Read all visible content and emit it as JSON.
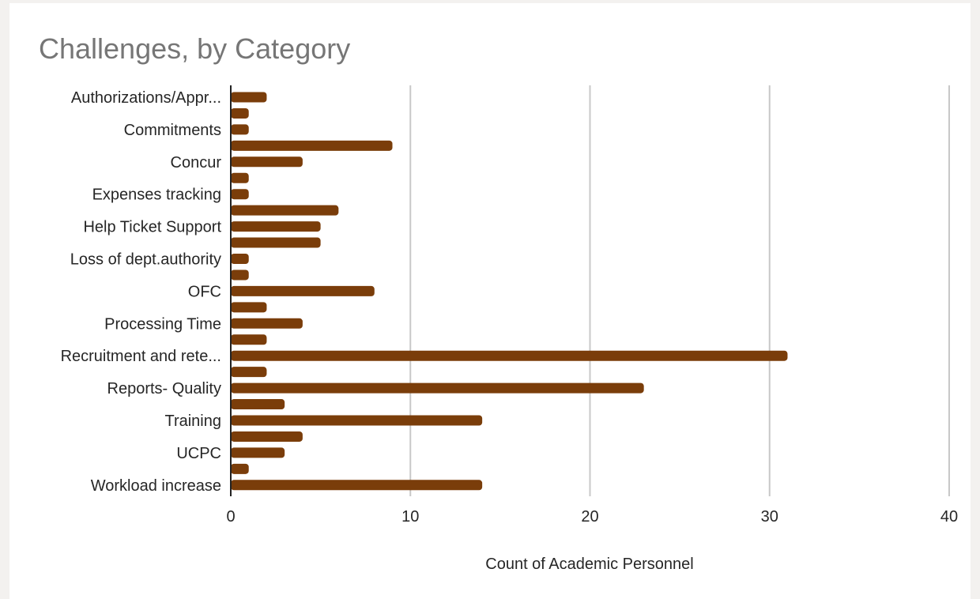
{
  "chart_data": {
    "type": "bar",
    "orientation": "horizontal",
    "title": "Challenges, by Category",
    "xlabel": "Count of Academic Personnel",
    "ylabel": "",
    "xlim": [
      0,
      40
    ],
    "xticks": [
      0,
      10,
      20,
      30,
      40
    ],
    "grid": true,
    "legend": "none",
    "bar_color": "#7a3d0a",
    "categories": [
      "Authorizations/Appr...",
      "",
      "Commitments",
      "",
      "Concur",
      "",
      "Expenses tracking",
      "",
      "Help Ticket Support",
      "",
      "Loss of dept.authority",
      "",
      "OFC",
      "",
      "Processing Time",
      "",
      "Recruitment and rete...",
      "",
      "Reports- Quality",
      "",
      "Training",
      "",
      "UCPC",
      "",
      "Workload increase"
    ],
    "values": [
      2,
      1,
      1,
      9,
      4,
      1,
      1,
      6,
      5,
      5,
      1,
      1,
      8,
      2,
      4,
      2,
      31,
      2,
      23,
      3,
      14,
      4,
      3,
      1,
      14
    ]
  }
}
